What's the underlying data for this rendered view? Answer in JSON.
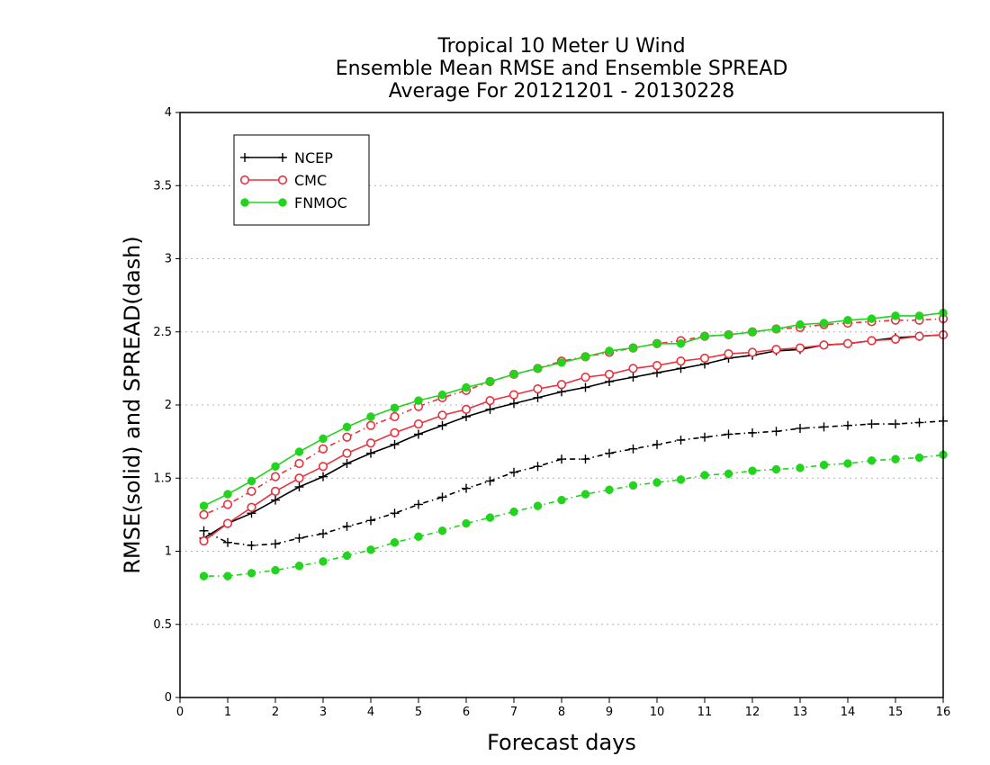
{
  "chart_data": {
    "type": "line",
    "title_lines": [
      "Tropical 10 Meter U Wind",
      "Ensemble Mean RMSE and Ensemble SPREAD",
      "Average For 20121201 - 20130228"
    ],
    "xlabel": "Forecast days",
    "ylabel": "RMSE(solid) and SPREAD(dash)",
    "xlim": [
      0,
      16
    ],
    "ylim": [
      0,
      4
    ],
    "x_ticks": [
      "0",
      "1",
      "2",
      "3",
      "4",
      "5",
      "6",
      "7",
      "8",
      "9",
      "10",
      "11",
      "12",
      "13",
      "14",
      "15",
      "16"
    ],
    "y_ticks": [
      "0",
      "0.5",
      "1",
      "1.5",
      "2",
      "2.5",
      "3",
      "3.5",
      "4"
    ],
    "grid": "horizontal dotted",
    "legend_position": "top-left",
    "x": [
      0.5,
      1,
      1.5,
      2,
      2.5,
      3,
      3.5,
      4,
      4.5,
      5,
      5.5,
      6,
      6.5,
      7,
      7.5,
      8,
      8.5,
      9,
      9.5,
      10,
      10.5,
      11,
      11.5,
      12,
      12.5,
      13,
      13.5,
      14,
      14.5,
      15,
      15.5,
      16
    ],
    "series": [
      {
        "name": "NCEP",
        "metric": "RMSE",
        "style": "solid",
        "color": "#000000",
        "marker": "plus",
        "values": [
          1.09,
          1.19,
          1.26,
          1.35,
          1.44,
          1.51,
          1.6,
          1.67,
          1.73,
          1.8,
          1.86,
          1.92,
          1.97,
          2.01,
          2.05,
          2.09,
          2.12,
          2.16,
          2.19,
          2.22,
          2.25,
          2.28,
          2.32,
          2.34,
          2.37,
          2.38,
          2.41,
          2.42,
          2.44,
          2.46,
          2.47,
          2.48
        ]
      },
      {
        "name": "NCEP",
        "metric": "SPREAD",
        "style": "dash",
        "color": "#000000",
        "marker": "plus",
        "values": [
          1.14,
          1.06,
          1.04,
          1.05,
          1.09,
          1.12,
          1.17,
          1.21,
          1.26,
          1.32,
          1.37,
          1.43,
          1.48,
          1.54,
          1.58,
          1.63,
          1.63,
          1.67,
          1.7,
          1.73,
          1.76,
          1.78,
          1.8,
          1.81,
          1.82,
          1.84,
          1.85,
          1.86,
          1.87,
          1.87,
          1.88,
          1.89
        ]
      },
      {
        "name": "CMC",
        "metric": "RMSE",
        "style": "solid",
        "color": "#e8323c",
        "marker": "open-circle",
        "values": [
          1.07,
          1.19,
          1.3,
          1.41,
          1.5,
          1.58,
          1.67,
          1.74,
          1.81,
          1.87,
          1.93,
          1.97,
          2.03,
          2.07,
          2.11,
          2.14,
          2.19,
          2.21,
          2.25,
          2.27,
          2.3,
          2.32,
          2.35,
          2.36,
          2.38,
          2.39,
          2.41,
          2.42,
          2.44,
          2.45,
          2.47,
          2.48
        ]
      },
      {
        "name": "CMC",
        "metric": "SPREAD",
        "style": "dash",
        "color": "#e8323c",
        "marker": "open-circle",
        "values": [
          1.25,
          1.32,
          1.41,
          1.51,
          1.6,
          1.7,
          1.78,
          1.86,
          1.92,
          1.99,
          2.05,
          2.1,
          2.16,
          2.21,
          2.25,
          2.3,
          2.33,
          2.36,
          2.39,
          2.42,
          2.44,
          2.47,
          2.48,
          2.5,
          2.52,
          2.53,
          2.55,
          2.56,
          2.57,
          2.58,
          2.58,
          2.59
        ]
      },
      {
        "name": "FNMOC",
        "metric": "RMSE",
        "style": "solid",
        "color": "#22d41e",
        "marker": "filled-circle",
        "values": [
          1.31,
          1.39,
          1.48,
          1.58,
          1.68,
          1.77,
          1.85,
          1.92,
          1.98,
          2.03,
          2.07,
          2.12,
          2.16,
          2.21,
          2.25,
          2.29,
          2.33,
          2.37,
          2.39,
          2.42,
          2.42,
          2.47,
          2.48,
          2.5,
          2.52,
          2.55,
          2.56,
          2.58,
          2.59,
          2.61,
          2.61,
          2.63
        ]
      },
      {
        "name": "FNMOC",
        "metric": "SPREAD",
        "style": "dash",
        "color": "#22d41e",
        "marker": "filled-circle",
        "values": [
          0.83,
          0.83,
          0.85,
          0.87,
          0.9,
          0.93,
          0.97,
          1.01,
          1.06,
          1.1,
          1.14,
          1.19,
          1.23,
          1.27,
          1.31,
          1.35,
          1.39,
          1.42,
          1.45,
          1.47,
          1.49,
          1.52,
          1.53,
          1.55,
          1.56,
          1.57,
          1.59,
          1.6,
          1.62,
          1.63,
          1.64,
          1.66
        ]
      }
    ],
    "legend": [
      {
        "label": "NCEP",
        "color": "#000000",
        "marker": "plus"
      },
      {
        "label": "CMC",
        "color": "#e8323c",
        "marker": "open-circle"
      },
      {
        "label": "FNMOC",
        "color": "#22d41e",
        "marker": "filled-circle"
      }
    ]
  }
}
